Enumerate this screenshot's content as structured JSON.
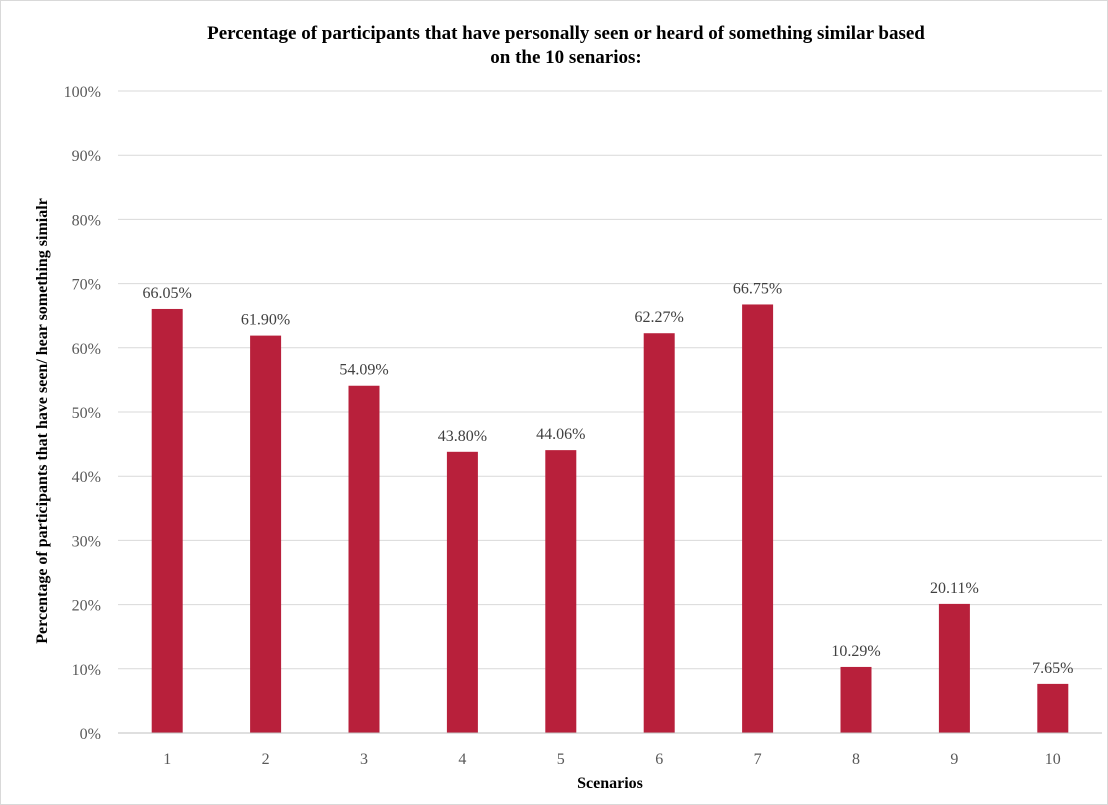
{
  "chart_data": {
    "type": "bar",
    "title_lines": [
      "Percentage of participants that have personally seen or heard of something similar based",
      "on the 10 senarios:"
    ],
    "xlabel": "Scenarios",
    "ylabel": "Percentage of participants that have seen/ hear something simialr",
    "categories": [
      "1",
      "2",
      "3",
      "4",
      "5",
      "6",
      "7",
      "8",
      "9",
      "10"
    ],
    "values": [
      66.05,
      61.9,
      54.09,
      43.8,
      44.06,
      62.27,
      66.75,
      10.29,
      20.11,
      7.65
    ],
    "data_labels": [
      "66.05%",
      "61.90%",
      "54.09%",
      "43.80%",
      "44.06%",
      "62.27%",
      "66.75%",
      "10.29%",
      "20.11%",
      "7.65%"
    ],
    "ylim": [
      0,
      100
    ],
    "yticks": [
      0,
      10,
      20,
      30,
      40,
      50,
      60,
      70,
      80,
      90,
      100
    ],
    "ytick_labels": [
      "0%",
      "10%",
      "20%",
      "30%",
      "40%",
      "50%",
      "60%",
      "70%",
      "80%",
      "90%",
      "100%"
    ],
    "grid": true,
    "legend": "none",
    "bar_color": "#b8203b"
  }
}
